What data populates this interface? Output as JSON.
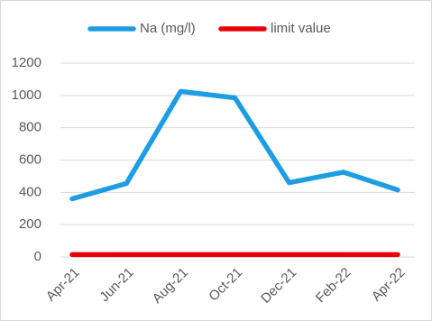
{
  "chart_data": {
    "type": "line",
    "categories": [
      "Apr-21",
      "Jun-21",
      "Aug-21",
      "Oct-21",
      "Dec-21",
      "Feb-22",
      "Apr-22"
    ],
    "series": [
      {
        "name": "Na (mg/l)",
        "color": "#1f9de2",
        "values": [
          360,
          455,
          1025,
          985,
          460,
          525,
          415
        ]
      },
      {
        "name": "limit value",
        "color": "#e8000b",
        "values": [
          15,
          15,
          15,
          15,
          15,
          15,
          15
        ]
      }
    ],
    "ylim": [
      0,
      1200
    ],
    "yticks": [
      0,
      200,
      400,
      600,
      800,
      1000,
      1200
    ],
    "grid": true,
    "legend": "top"
  }
}
